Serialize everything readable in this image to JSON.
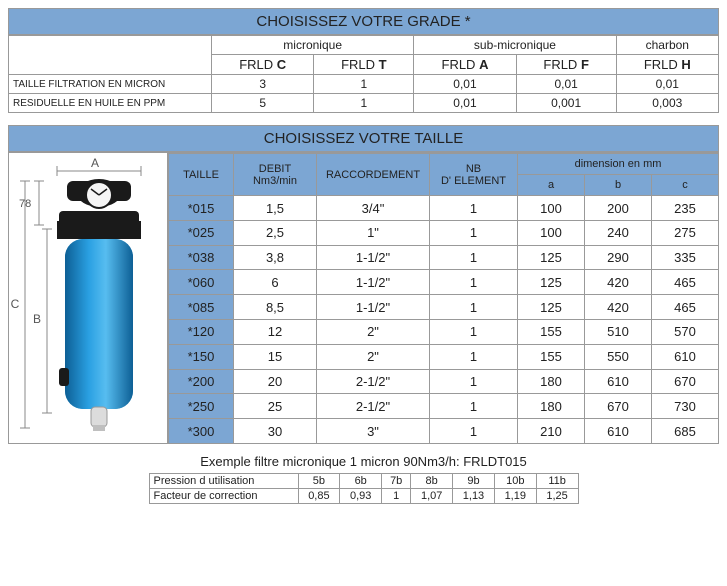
{
  "grade": {
    "title": "CHOISISSEZ VOTRE GRADE *",
    "groups": [
      {
        "label": "micronique",
        "span": 2
      },
      {
        "label": "sub-micronique",
        "span": 2
      },
      {
        "label": "charbon",
        "span": 1
      }
    ],
    "codes": [
      "FRLD C",
      "FRLD T",
      "FRLD A",
      "FRLD F",
      "FRLD H"
    ],
    "rows": [
      {
        "label": "TAILLE FILTRATION EN MICRON",
        "values": [
          "3",
          "1",
          "0,01",
          "0,01",
          "0,01"
        ]
      },
      {
        "label": "RESIDUELLE EN HUILE EN PPM",
        "values": [
          "5",
          "1",
          "0,01",
          "0,001",
          "0,003"
        ]
      }
    ]
  },
  "size": {
    "title": "CHOISISSEZ VOTRE TAILLE",
    "columns": {
      "taille": "TAILLE",
      "debit": "DEBIT\nNm3/min",
      "racc": "RACCORDEMENT",
      "nb": "NB\nD' ELEMENT",
      "dim": "dimension en mm",
      "a": "a",
      "b": "b",
      "c": "c"
    },
    "diagram": {
      "label_a": "A",
      "label_b": "B",
      "label_c": "C",
      "label_78": "78"
    },
    "rows": [
      {
        "t": "*015",
        "d": "1,5",
        "r": "3/4\"",
        "n": "1",
        "a": "100",
        "b": "200",
        "c": "235"
      },
      {
        "t": "*025",
        "d": "2,5",
        "r": "1\"",
        "n": "1",
        "a": "100",
        "b": "240",
        "c": "275"
      },
      {
        "t": "*038",
        "d": "3,8",
        "r": "1-1/2\"",
        "n": "1",
        "a": "125",
        "b": "290",
        "c": "335"
      },
      {
        "t": "*060",
        "d": "6",
        "r": "1-1/2\"",
        "n": "1",
        "a": "125",
        "b": "420",
        "c": "465"
      },
      {
        "t": "*085",
        "d": "8,5",
        "r": "1-1/2\"",
        "n": "1",
        "a": "125",
        "b": "420",
        "c": "465"
      },
      {
        "t": "*120",
        "d": "12",
        "r": "2\"",
        "n": "1",
        "a": "155",
        "b": "510",
        "c": "570"
      },
      {
        "t": "*150",
        "d": "15",
        "r": "2\"",
        "n": "1",
        "a": "155",
        "b": "550",
        "c": "610"
      },
      {
        "t": "*200",
        "d": "20",
        "r": "2-1/2\"",
        "n": "1",
        "a": "180",
        "b": "610",
        "c": "670"
      },
      {
        "t": "*250",
        "d": "25",
        "r": "2-1/2\"",
        "n": "1",
        "a": "180",
        "b": "670",
        "c": "730"
      },
      {
        "t": "*300",
        "d": "30",
        "r": "3\"",
        "n": "1",
        "a": "210",
        "b": "610",
        "c": "685"
      }
    ]
  },
  "example": "Exemple filtre micronique 1 micron 90Nm3/h: FRLDT015",
  "correction": {
    "row1_label": "Pression d utilisation",
    "row2_label": "Facteur de correction",
    "pressures": [
      "5b",
      "6b",
      "7b",
      "8b",
      "9b",
      "10b",
      "11b"
    ],
    "factors": [
      "0,85",
      "0,93",
      "1",
      "1,07",
      "1,13",
      "1,19",
      "1,25"
    ]
  },
  "colors": {
    "blue_header": "#7ca6d3",
    "border": "#999999",
    "filter_blue": "#1889c9",
    "filter_black": "#1a1a1a",
    "filter_metal": "#dcdcdc",
    "dim_line": "#888888"
  }
}
